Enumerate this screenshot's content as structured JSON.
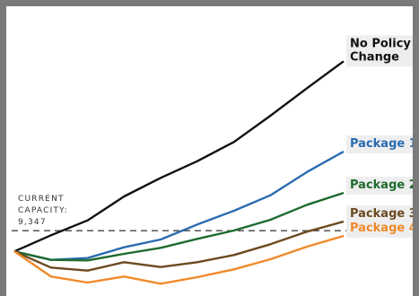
{
  "chart_data": {
    "type": "line",
    "x": [
      0,
      1,
      2,
      3,
      4,
      5,
      6,
      7,
      8,
      9
    ],
    "series": [
      {
        "name": "No Policy Change",
        "label_lines": [
          "No Policy",
          "Change"
        ],
        "color": "#111111",
        "label_bg": "#eeeeee",
        "values": [
          9000,
          9270,
          9520,
          9920,
          10230,
          10510,
          10830,
          11270,
          11730,
          12180
        ]
      },
      {
        "name": "Package 1",
        "label_lines": [
          "Package 1"
        ],
        "color": "#2a6cb0",
        "label_bg": "#eeeeee",
        "values": [
          9000,
          8860,
          8890,
          9070,
          9200,
          9450,
          9680,
          9940,
          10330,
          10670
        ]
      },
      {
        "name": "Package 2",
        "label_lines": [
          "Package 2"
        ],
        "color": "#1e6b2e",
        "label_bg": "#eeeeee",
        "values": [
          9000,
          8860,
          8850,
          8960,
          9060,
          9210,
          9350,
          9530,
          9780,
          9980
        ]
      },
      {
        "name": "Package 3",
        "label_lines": [
          "Package 3"
        ],
        "color": "#6b4a20",
        "label_bg": "#eeeeee",
        "values": [
          9000,
          8730,
          8680,
          8820,
          8740,
          8820,
          8940,
          9120,
          9330,
          9500
        ]
      },
      {
        "name": "Package 4",
        "label_lines": [
          "Package 4"
        ],
        "color": "#f08a2a",
        "label_bg": "#eeeeee",
        "values": [
          9000,
          8580,
          8480,
          8580,
          8460,
          8570,
          8700,
          8870,
          9080,
          9260
        ]
      }
    ],
    "reference_line": {
      "label_lines": [
        "CURRENT",
        "CAPACITY:",
        "9,347"
      ],
      "value": 9347,
      "style": "dashed"
    },
    "ylim": [
      8300,
      12500
    ],
    "grid": false,
    "axes_visible": false,
    "legend": "inline labels at right end of each line"
  }
}
